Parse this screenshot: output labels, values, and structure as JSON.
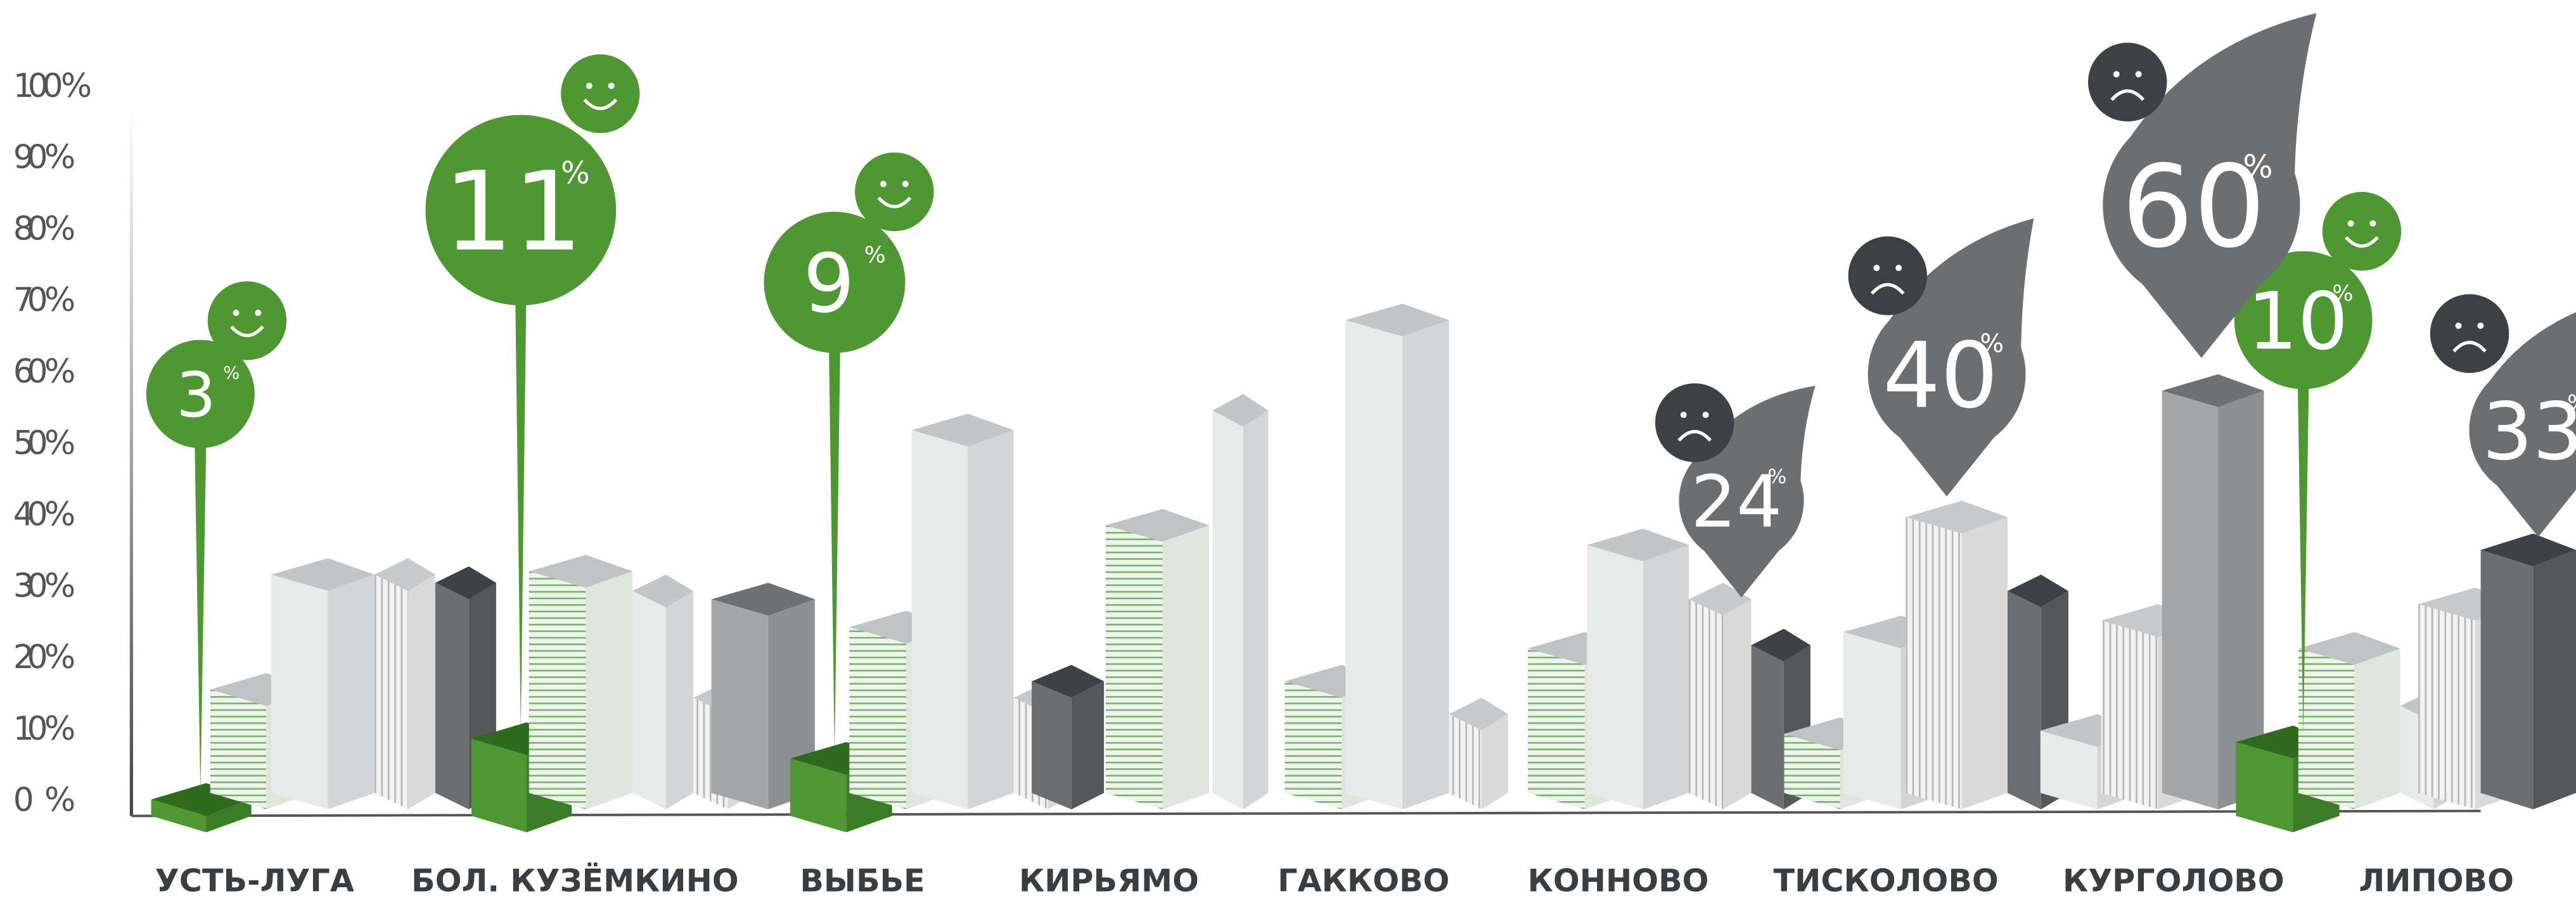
{
  "chart_data": {
    "type": "pin",
    "categories": [
      "УСТЬ-ЛУГА",
      "БОЛ. КУЗЁМКИНО",
      "ВЫБЬЕ",
      "КИРЬЯМО",
      "ГАККОВО",
      "КОННОВО",
      "ТИСКОЛОВО",
      "КУРГОЛОВО",
      "ЛИПОВО"
    ],
    "green_values": [
      3,
      11,
      9,
      null,
      null,
      null,
      null,
      10,
      null
    ],
    "gray_values": [
      null,
      null,
      null,
      null,
      null,
      24,
      40,
      60,
      33
    ],
    "percent_sign": "%",
    "green_color": "#4e9733",
    "gray_color": "#6d6e70",
    "ylim": [
      0,
      100
    ],
    "yticks": [
      {
        "value": 0,
        "label": "0 %"
      },
      {
        "value": 10,
        "label": "10 %"
      },
      {
        "value": 20,
        "label": "20 %"
      },
      {
        "value": 30,
        "label": "30 %"
      },
      {
        "value": 40,
        "label": "40 %"
      },
      {
        "value": 50,
        "label": "50 %"
      },
      {
        "value": 60,
        "label": "60 %"
      },
      {
        "value": 70,
        "label": "70 %"
      },
      {
        "value": 80,
        "label": "80 %"
      },
      {
        "value": 90,
        "label": "90 %"
      },
      {
        "value": 100,
        "label": "100 %"
      }
    ]
  }
}
